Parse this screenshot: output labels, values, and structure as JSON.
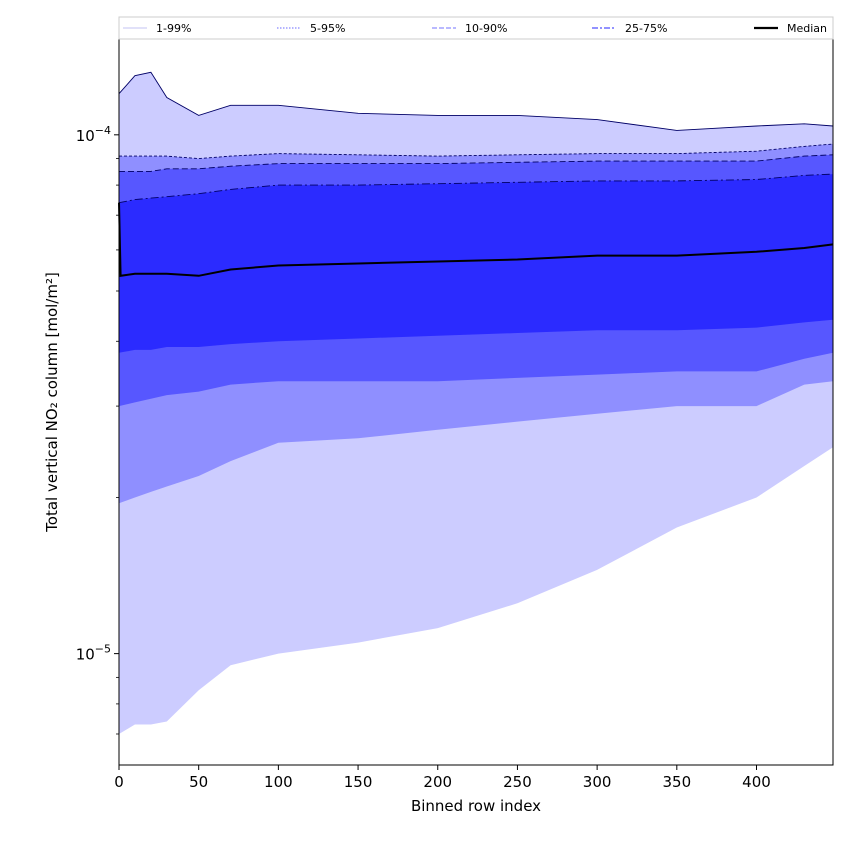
{
  "chart_data": {
    "type": "area",
    "title": "",
    "xlabel": "Binned row index",
    "ylabel": "Total vertical NO₂ column [mol/m²]",
    "xlim": [
      0,
      448
    ],
    "ylim": [
      6.1e-06,
      0.000153
    ],
    "yscale": "log",
    "grid": false,
    "legend_position": "top",
    "x_ticks": [
      0,
      50,
      100,
      150,
      200,
      250,
      300,
      350,
      400
    ],
    "y_ticks": [
      {
        "value": 1e-05,
        "base": "10",
        "exp": "−5"
      },
      {
        "value": 0.0001,
        "base": "10",
        "exp": "−4"
      }
    ],
    "legend": [
      {
        "label": "1-99%",
        "color": "#cfcff5",
        "dash": "solid"
      },
      {
        "label": "5-95%",
        "color": "#8888ff",
        "dash": "dotted"
      },
      {
        "label": "10-90%",
        "color": "#8f8fff",
        "dash": "dashed"
      },
      {
        "label": "25-75%",
        "color": "#5050ff",
        "dash": "dashdot"
      },
      {
        "label": "Median",
        "color": "#000000",
        "dash": "solid"
      }
    ],
    "bands": [
      {
        "name": "1-99%",
        "color": "#ccccff",
        "lower_key": "p1",
        "upper_key": "p99"
      },
      {
        "name": "5-95%",
        "color": "#8f8fff",
        "lower_key": "p5",
        "upper_key": "p95"
      },
      {
        "name": "10-90%",
        "color": "#5757ff",
        "lower_key": "p10",
        "upper_key": "p90"
      },
      {
        "name": "25-75%",
        "color": "#2b2bff",
        "lower_key": "p25",
        "upper_key": "p75"
      }
    ],
    "x": [
      0,
      10,
      20,
      30,
      50,
      70,
      100,
      150,
      200,
      250,
      300,
      350,
      400,
      430,
      448
    ],
    "series": {
      "p99": [
        0.00012,
        0.00013,
        0.000132,
        0.000118,
        0.000109,
        0.000114,
        0.000114,
        0.00011,
        0.000109,
        0.000109,
        0.000107,
        0.000102,
        0.000104,
        0.000105,
        0.000104
      ],
      "p95": [
        9.1e-05,
        9.1e-05,
        9.1e-05,
        9.1e-05,
        9e-05,
        9.1e-05,
        9.2e-05,
        9.15e-05,
        9.1e-05,
        9.15e-05,
        9.2e-05,
        9.2e-05,
        9.3e-05,
        9.5e-05,
        9.6e-05
      ],
      "p90": [
        8.5e-05,
        8.5e-05,
        8.5e-05,
        8.6e-05,
        8.6e-05,
        8.7e-05,
        8.8e-05,
        8.8e-05,
        8.8e-05,
        8.85e-05,
        8.9e-05,
        8.9e-05,
        8.9e-05,
        9.1e-05,
        9.15e-05
      ],
      "p75": [
        7.4e-05,
        7.5e-05,
        7.55e-05,
        7.6e-05,
        7.7e-05,
        7.85e-05,
        8e-05,
        8e-05,
        8.05e-05,
        8.1e-05,
        8.15e-05,
        8.15e-05,
        8.2e-05,
        8.35e-05,
        8.4e-05
      ],
      "median": [
        5.35e-05,
        5.4e-05,
        5.4e-05,
        5.4e-05,
        5.35e-05,
        5.5e-05,
        5.6e-05,
        5.65e-05,
        5.7e-05,
        5.75e-05,
        5.85e-05,
        5.85e-05,
        5.95e-05,
        6.05e-05,
        6.15e-05
      ],
      "p25": [
        3.8e-05,
        3.85e-05,
        3.85e-05,
        3.9e-05,
        3.9e-05,
        3.95e-05,
        4e-05,
        4.05e-05,
        4.1e-05,
        4.15e-05,
        4.2e-05,
        4.2e-05,
        4.25e-05,
        4.35e-05,
        4.4e-05
      ],
      "p10": [
        3e-05,
        3.05e-05,
        3.1e-05,
        3.15e-05,
        3.2e-05,
        3.3e-05,
        3.35e-05,
        3.35e-05,
        3.35e-05,
        3.4e-05,
        3.45e-05,
        3.5e-05,
        3.5e-05,
        3.7e-05,
        3.8e-05
      ],
      "p5": [
        1.95e-05,
        2e-05,
        2.05e-05,
        2.1e-05,
        2.2e-05,
        2.35e-05,
        2.55e-05,
        2.6e-05,
        2.7e-05,
        2.8e-05,
        2.9e-05,
        3e-05,
        3e-05,
        3.3e-05,
        3.35e-05
      ],
      "p1": [
        7e-06,
        7.3e-06,
        7.3e-06,
        7.4e-06,
        8.5e-06,
        9.5e-06,
        1e-05,
        1.05e-05,
        1.12e-05,
        1.25e-05,
        1.45e-05,
        1.75e-05,
        2e-05,
        2.3e-05,
        2.5e-05
      ]
    },
    "band_lines": [
      "p99",
      "p95",
      "p90",
      "p75"
    ]
  }
}
